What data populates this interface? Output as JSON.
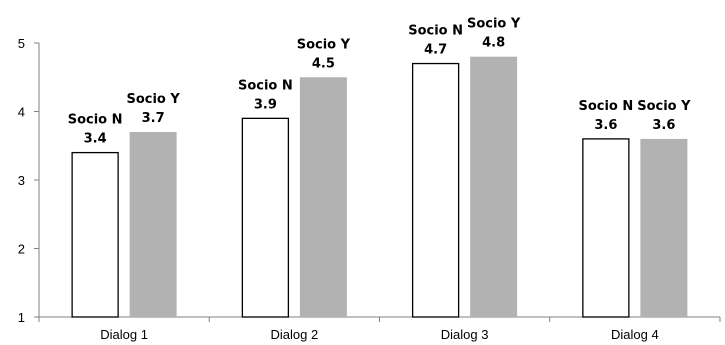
{
  "chart_data": {
    "type": "bar",
    "title": "",
    "xlabel": "",
    "ylabel": "",
    "ylim": [
      1,
      5
    ],
    "yticks": [
      1,
      2,
      3,
      4,
      5
    ],
    "grid": false,
    "legend": "none",
    "categories": [
      "Dialog 1",
      "Dialog 2",
      "Dialog 3",
      "Dialog 4"
    ],
    "series": [
      {
        "name": "Socio N",
        "values": [
          3.4,
          3.9,
          4.7,
          3.6
        ],
        "value_labels": [
          "3.4",
          "3.9",
          "4.7",
          "3.6"
        ],
        "fill": "#ffffff",
        "stroke": "#000000"
      },
      {
        "name": "Socio Y",
        "values": [
          3.7,
          4.5,
          4.8,
          3.6
        ],
        "value_labels": [
          "3.7",
          "4.5",
          "4.8",
          "3.6"
        ],
        "fill": "#b2b2b2",
        "stroke": "none"
      }
    ]
  }
}
